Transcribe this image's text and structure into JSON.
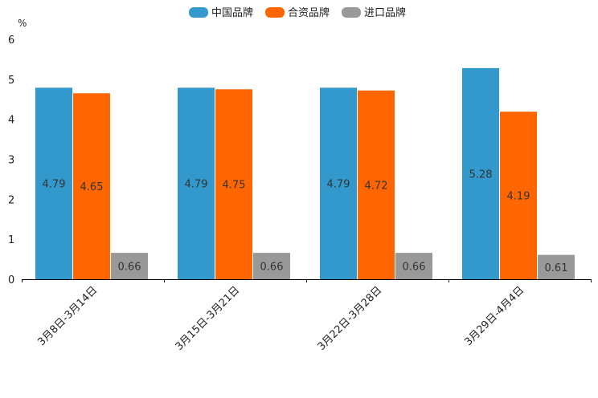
{
  "chart_data": {
    "type": "bar",
    "title": "",
    "ylabel": "%",
    "xlabel": "",
    "ylim": [
      0,
      6
    ],
    "yticks": [
      0,
      1,
      2,
      3,
      4,
      5,
      6
    ],
    "legend_position": "top-center",
    "categories": [
      "3月8日-3月14日",
      "3月15日-3月21日",
      "3月22日-3月28日",
      "3月29日-4月4日"
    ],
    "series": [
      {
        "name": "中国品牌",
        "color": "#3399cc",
        "values": [
          4.79,
          4.79,
          4.79,
          5.28
        ],
        "labels": [
          "4.79",
          "4.79",
          "4.79",
          "5.28"
        ]
      },
      {
        "name": "合资品牌",
        "color": "#ff6600",
        "values": [
          4.65,
          4.75,
          4.72,
          4.19
        ],
        "labels": [
          "4.65",
          "4.75",
          "4.72",
          "4.19"
        ]
      },
      {
        "name": "进口品牌",
        "color": "#999999",
        "values": [
          0.66,
          0.66,
          0.66,
          0.61
        ],
        "labels": [
          "0.66",
          "0.66",
          "0.66",
          "0.61"
        ]
      }
    ]
  }
}
